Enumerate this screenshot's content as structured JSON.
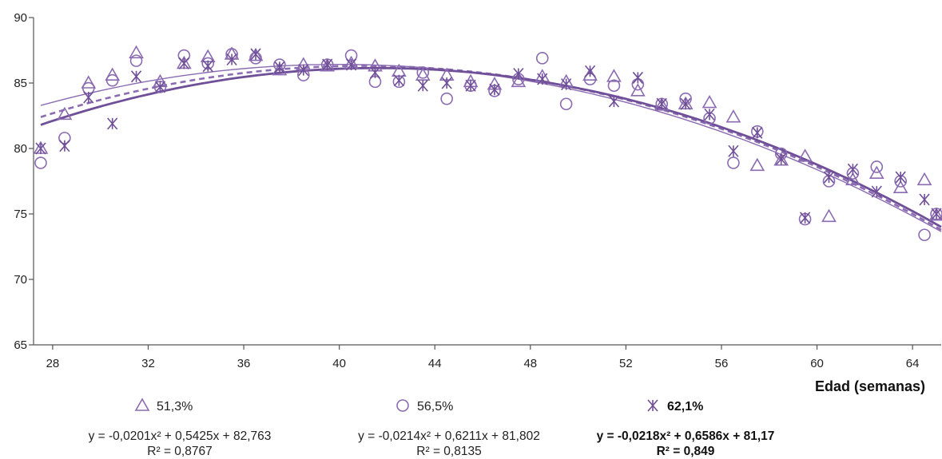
{
  "chart_data": {
    "type": "scatter",
    "xlabel": "Edad (semanas)",
    "ylabel": "",
    "xlim": [
      27.2,
      65.2
    ],
    "ylim": [
      65,
      90
    ],
    "x_ticks": [
      28,
      32,
      36,
      40,
      44,
      48,
      52,
      56,
      60,
      64
    ],
    "y_ticks": [
      65,
      70,
      75,
      80,
      85,
      90
    ],
    "grid": false,
    "series": [
      {
        "name": "51,3%",
        "marker": "triangle",
        "color": "#8b6bb1",
        "x": [
          27.5,
          28.5,
          29.5,
          30.5,
          31.5,
          32.5,
          33.5,
          34.5,
          35.5,
          36.5,
          37.5,
          38.5,
          39.5,
          40.5,
          41.5,
          42.5,
          43.5,
          44.5,
          45.5,
          46.5,
          47.5,
          48.5,
          49.5,
          50.5,
          51.5,
          52.5,
          53.5,
          54.5,
          55.5,
          56.5,
          57.5,
          58.5,
          59.5,
          60.5,
          61.5,
          62.5,
          63.5,
          64.5,
          65.0
        ],
        "y": [
          80.0,
          82.6,
          85.0,
          85.6,
          87.3,
          85.1,
          86.5,
          87.0,
          87.2,
          87.1,
          86.0,
          86.4,
          86.3,
          86.5,
          86.3,
          85.9,
          85.6,
          85.6,
          85.1,
          84.9,
          85.1,
          85.5,
          85.1,
          85.6,
          85.5,
          84.4,
          83.3,
          83.4,
          83.5,
          82.4,
          78.7,
          79.1,
          79.4,
          74.8,
          77.6,
          78.1,
          77.0,
          77.6,
          74.9
        ],
        "equation": "y = -0,0201x² + 0,5425x + 82,763",
        "r2": "R² = 0,8767",
        "fit": [
          -0.0201,
          0.5425,
          82.763
        ]
      },
      {
        "name": "56,5%",
        "marker": "circle",
        "color": "#8b6bb1",
        "x": [
          27.5,
          28.5,
          29.5,
          30.5,
          31.5,
          32.5,
          33.5,
          34.5,
          35.5,
          36.5,
          37.5,
          38.5,
          39.5,
          40.5,
          41.5,
          42.5,
          43.5,
          44.5,
          45.5,
          46.5,
          47.5,
          48.5,
          49.5,
          50.5,
          51.5,
          52.5,
          53.5,
          54.5,
          55.5,
          56.5,
          57.5,
          58.5,
          59.5,
          60.5,
          61.5,
          62.5,
          63.5,
          64.5,
          65.0
        ],
        "y": [
          78.9,
          80.8,
          84.6,
          85.2,
          86.7,
          84.7,
          87.1,
          86.5,
          87.2,
          86.9,
          86.4,
          85.6,
          86.4,
          87.1,
          85.1,
          85.1,
          85.8,
          83.8,
          84.8,
          84.4,
          85.3,
          86.9,
          83.4,
          85.3,
          84.8,
          84.9,
          83.4,
          83.8,
          82.3,
          78.9,
          81.3,
          79.6,
          74.6,
          77.5,
          78.1,
          78.6,
          77.5,
          73.4,
          75.0
        ],
        "equation": "y = -0,0214x² + 0,6211x + 81,802",
        "r2": "R² = 0,8135",
        "fit": [
          -0.0214,
          0.6211,
          81.802
        ]
      },
      {
        "name": "62,1%",
        "marker": "asterisk",
        "color": "#6f4f97",
        "x": [
          27.5,
          28.5,
          29.5,
          30.5,
          31.5,
          32.5,
          33.5,
          34.5,
          35.5,
          36.5,
          37.5,
          38.5,
          39.5,
          40.5,
          41.5,
          42.5,
          43.5,
          44.5,
          45.5,
          46.5,
          47.5,
          48.5,
          49.5,
          50.5,
          51.5,
          52.5,
          53.5,
          54.5,
          55.5,
          56.5,
          57.5,
          58.5,
          59.5,
          60.5,
          61.5,
          62.5,
          63.5,
          64.5,
          65.0
        ],
        "y": [
          80.0,
          80.2,
          83.9,
          81.9,
          85.5,
          84.7,
          86.5,
          86.3,
          86.8,
          87.2,
          86.2,
          86.0,
          86.4,
          86.4,
          85.8,
          85.2,
          84.8,
          85.0,
          84.8,
          84.5,
          85.7,
          85.3,
          84.9,
          85.9,
          83.6,
          85.4,
          83.4,
          83.4,
          82.6,
          79.8,
          81.2,
          79.2,
          74.7,
          77.8,
          78.4,
          76.7,
          77.8,
          76.1,
          75.0
        ],
        "equation": "y = -0,0218x² + 0,6586x + 81,17",
        "r2": "R² = 0,849",
        "fit": [
          -0.0218,
          0.6586,
          81.17
        ]
      }
    ]
  }
}
